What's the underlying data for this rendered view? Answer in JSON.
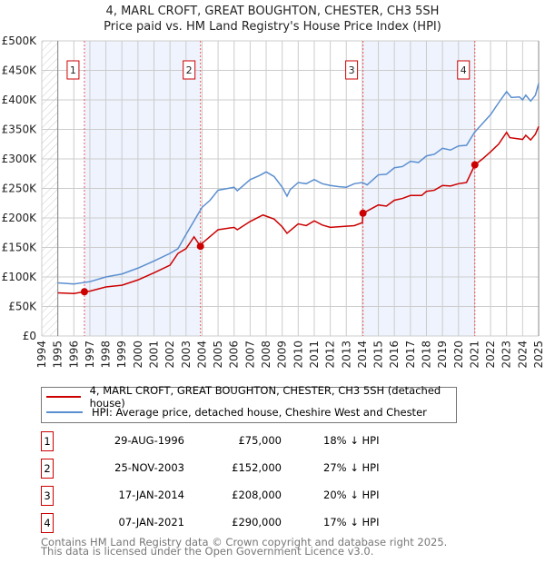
{
  "chart_data": {
    "type": "line",
    "title": "4, MARL CROFT, GREAT BOUGHTON, CHESTER, CH3 5SH",
    "subtitle": "Price paid vs. HM Land Registry's House Price Index (HPI)",
    "xlim": [
      1994,
      2025
    ],
    "ylim": [
      0,
      500000
    ],
    "x_ticks": [
      "1994",
      "1995",
      "1996",
      "1997",
      "1998",
      "1999",
      "2000",
      "2001",
      "2002",
      "2003",
      "2004",
      "2005",
      "2006",
      "2007",
      "2008",
      "2009",
      "2010",
      "2011",
      "2012",
      "2013",
      "2014",
      "2015",
      "2016",
      "2017",
      "2018",
      "2019",
      "2020",
      "2021",
      "2022",
      "2023",
      "2024",
      "2025"
    ],
    "y_ticks": [
      {
        "v": 0,
        "label": "£0"
      },
      {
        "v": 50000,
        "label": "£50K"
      },
      {
        "v": 100000,
        "label": "£100K"
      },
      {
        "v": 150000,
        "label": "£150K"
      },
      {
        "v": 200000,
        "label": "£200K"
      },
      {
        "v": 250000,
        "label": "£250K"
      },
      {
        "v": 300000,
        "label": "£300K"
      },
      {
        "v": 350000,
        "label": "£350K"
      },
      {
        "v": 400000,
        "label": "£400K"
      },
      {
        "v": 450000,
        "label": "£450K"
      },
      {
        "v": 500000,
        "label": "£500K"
      }
    ],
    "grid": true,
    "series": [
      {
        "name": "4, MARL CROFT, GREAT BOUGHTON, CHESTER, CH3 5SH (detached house)",
        "color": "#cc0000",
        "points": [
          [
            1995,
            73
          ],
          [
            1996,
            72
          ],
          [
            1996.66,
            75
          ],
          [
            1997,
            76
          ],
          [
            1998,
            83
          ],
          [
            1999,
            86
          ],
          [
            2000,
            95
          ],
          [
            2001,
            107
          ],
          [
            2002,
            120
          ],
          [
            2002.5,
            140
          ],
          [
            2003,
            148
          ],
          [
            2003.5,
            168
          ],
          [
            2003.9,
            152
          ],
          [
            2004,
            157
          ],
          [
            2005,
            180
          ],
          [
            2006,
            184
          ],
          [
            2006.2,
            180
          ],
          [
            2007,
            194
          ],
          [
            2007.8,
            205
          ],
          [
            2008.5,
            198
          ],
          [
            2009,
            185
          ],
          [
            2009.3,
            174
          ],
          [
            2010,
            190
          ],
          [
            2010.5,
            187
          ],
          [
            2011,
            195
          ],
          [
            2011.5,
            188
          ],
          [
            2012,
            184
          ],
          [
            2013,
            186
          ],
          [
            2013.5,
            187
          ],
          [
            2014,
            192
          ],
          [
            2014.04,
            208
          ],
          [
            2015,
            222
          ],
          [
            2015.5,
            220
          ],
          [
            2016,
            230
          ],
          [
            2016.5,
            233
          ],
          [
            2017,
            238
          ],
          [
            2017.7,
            238
          ],
          [
            2018,
            245
          ],
          [
            2018.5,
            247
          ],
          [
            2019,
            255
          ],
          [
            2019.5,
            254
          ],
          [
            2020,
            258
          ],
          [
            2020.5,
            260
          ],
          [
            2021.02,
            290
          ],
          [
            2021.5,
            300
          ],
          [
            2022,
            312
          ],
          [
            2022.5,
            325
          ],
          [
            2023,
            345
          ],
          [
            2023.2,
            336
          ],
          [
            2024,
            333
          ],
          [
            2024.2,
            340
          ],
          [
            2024.5,
            332
          ],
          [
            2024.8,
            342
          ],
          [
            2025,
            355
          ]
        ]
      },
      {
        "name": "HPI: Average price, detached house, Cheshire West and Chester",
        "color": "#5b8fd0",
        "points": [
          [
            1995,
            90
          ],
          [
            1996,
            88
          ],
          [
            1997,
            92
          ],
          [
            1998,
            100
          ],
          [
            1999,
            105
          ],
          [
            2000,
            115
          ],
          [
            2001,
            127
          ],
          [
            2002,
            140
          ],
          [
            2002.5,
            148
          ],
          [
            2003,
            172
          ],
          [
            2003.5,
            195
          ],
          [
            2004,
            218
          ],
          [
            2004.5,
            230
          ],
          [
            2005,
            247
          ],
          [
            2006,
            252
          ],
          [
            2006.2,
            246
          ],
          [
            2007,
            265
          ],
          [
            2007.6,
            272
          ],
          [
            2008,
            278
          ],
          [
            2008.5,
            270
          ],
          [
            2009,
            252
          ],
          [
            2009.3,
            237
          ],
          [
            2009.5,
            248
          ],
          [
            2010,
            260
          ],
          [
            2010.5,
            258
          ],
          [
            2011,
            265
          ],
          [
            2011.5,
            258
          ],
          [
            2012,
            255
          ],
          [
            2012.5,
            253
          ],
          [
            2013,
            252
          ],
          [
            2013.5,
            258
          ],
          [
            2014,
            260
          ],
          [
            2014.3,
            256
          ],
          [
            2015,
            273
          ],
          [
            2015.5,
            274
          ],
          [
            2016,
            285
          ],
          [
            2016.5,
            287
          ],
          [
            2017,
            296
          ],
          [
            2017.5,
            294
          ],
          [
            2018,
            305
          ],
          [
            2018.5,
            308
          ],
          [
            2019,
            318
          ],
          [
            2019.5,
            315
          ],
          [
            2020,
            322
          ],
          [
            2020.5,
            323
          ],
          [
            2021,
            345
          ],
          [
            2021.5,
            360
          ],
          [
            2022,
            375
          ],
          [
            2022.5,
            395
          ],
          [
            2023,
            414
          ],
          [
            2023.3,
            404
          ],
          [
            2023.8,
            405
          ],
          [
            2024,
            400
          ],
          [
            2024.2,
            408
          ],
          [
            2024.5,
            398
          ],
          [
            2024.8,
            408
          ],
          [
            2025,
            428
          ]
        ]
      }
    ],
    "sales": [
      {
        "n": "1",
        "x": 1996.66,
        "value": 75000,
        "date": "29-AUG-1996",
        "price": "£75,000",
        "hpi": "18% ↓ HPI"
      },
      {
        "n": "2",
        "x": 2003.9,
        "value": 152000,
        "date": "25-NOV-2003",
        "price": "£152,000",
        "hpi": "27% ↓ HPI"
      },
      {
        "n": "3",
        "x": 2014.04,
        "value": 208000,
        "date": "17-JAN-2014",
        "price": "£208,000",
        "hpi": "20% ↓ HPI"
      },
      {
        "n": "4",
        "x": 2021.02,
        "value": 290000,
        "date": "07-JAN-2021",
        "price": "£290,000",
        "hpi": "17% ↓ HPI"
      }
    ],
    "legend_position": "bottom"
  },
  "footer": {
    "line1": "Contains HM Land Registry data © Crown copyright and database right 2025.",
    "line2": "This data is licensed under the Open Government Licence v3.0."
  }
}
